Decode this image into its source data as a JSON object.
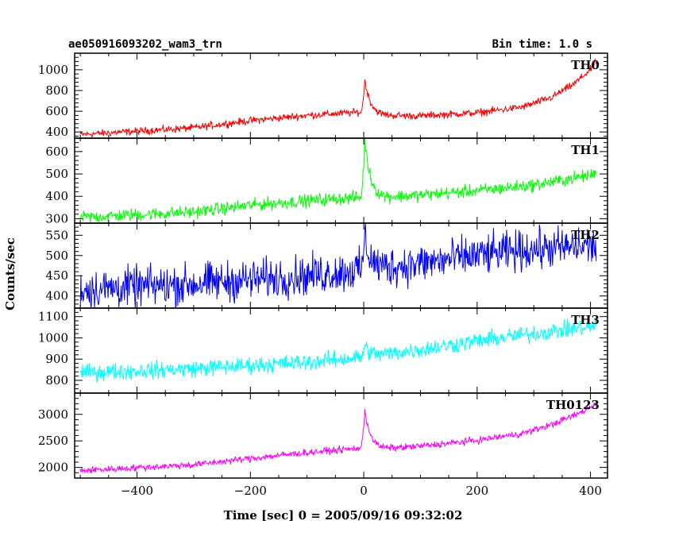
{
  "chart_data": {
    "type": "line",
    "title_left": "ae050916093202_wam3_trn",
    "title_right": "Bin time: 1.0 s",
    "xlabel": "Time [sec] 0 = 2005/09/16 09:32:02",
    "ylabel": "Counts/sec",
    "xlim": [
      -510,
      430
    ],
    "x_ticks": [
      -400,
      -200,
      0,
      200,
      400
    ],
    "x_tick_labels": [
      "−400",
      "−200",
      "0",
      "200",
      "400"
    ],
    "x_range": [
      -500,
      410
    ],
    "panels": [
      {
        "name": "TH0",
        "color": "#ff0000",
        "ylim": [
          340,
          1160
        ],
        "y_ticks": [
          400,
          600,
          800,
          1000
        ],
        "trend": [
          [
            -500,
            375
          ],
          [
            -300,
            440
          ],
          [
            -200,
            510
          ],
          [
            -100,
            560
          ],
          [
            -10,
            590
          ],
          [
            30,
            560
          ],
          [
            100,
            555
          ],
          [
            200,
            585
          ],
          [
            280,
            640
          ],
          [
            330,
            730
          ],
          [
            370,
            860
          ],
          [
            400,
            1000
          ],
          [
            410,
            1080
          ]
        ],
        "noise": 25,
        "burst": {
          "peak": 900,
          "time": 2
        }
      },
      {
        "name": "TH1",
        "color": "#00ff00",
        "ylim": [
          280,
          660
        ],
        "y_ticks": [
          300,
          400,
          500,
          600
        ],
        "trend": [
          [
            -500,
            305
          ],
          [
            -300,
            330
          ],
          [
            -200,
            360
          ],
          [
            -100,
            380
          ],
          [
            -10,
            395
          ],
          [
            30,
            395
          ],
          [
            100,
            405
          ],
          [
            200,
            425
          ],
          [
            300,
            450
          ],
          [
            400,
            495
          ],
          [
            410,
            505
          ]
        ],
        "noise": 20,
        "burst": {
          "peak": 650,
          "time": 2
        }
      },
      {
        "name": "TH2",
        "color": "#0000ff",
        "ylim": [
          370,
          580
        ],
        "y_ticks": [
          400,
          450,
          500,
          550
        ],
        "trend": [
          [
            -500,
            415
          ],
          [
            -300,
            430
          ],
          [
            -100,
            450
          ],
          [
            0,
            465
          ],
          [
            100,
            480
          ],
          [
            200,
            500
          ],
          [
            300,
            515
          ],
          [
            410,
            525
          ]
        ],
        "noise": 35,
        "burst": {
          "peak": 545,
          "time": 2
        }
      },
      {
        "name": "TH3",
        "color": "#00ffff",
        "ylim": [
          740,
          1140
        ],
        "y_ticks": [
          800,
          900,
          1000,
          1100
        ],
        "trend": [
          [
            -500,
            835
          ],
          [
            -300,
            855
          ],
          [
            -100,
            885
          ],
          [
            0,
            910
          ],
          [
            100,
            945
          ],
          [
            200,
            985
          ],
          [
            300,
            1020
          ],
          [
            410,
            1055
          ]
        ],
        "noise": 28,
        "burst": {
          "peak": 960,
          "time": 2
        }
      },
      {
        "name": "TH0123",
        "color": "#ff00ff",
        "ylim": [
          1800,
          3400
        ],
        "y_ticks": [
          2000,
          2500,
          3000
        ],
        "trend": [
          [
            -500,
            1940
          ],
          [
            -300,
            2050
          ],
          [
            -200,
            2170
          ],
          [
            -100,
            2280
          ],
          [
            -10,
            2360
          ],
          [
            30,
            2350
          ],
          [
            100,
            2400
          ],
          [
            200,
            2510
          ],
          [
            280,
            2640
          ],
          [
            330,
            2800
          ],
          [
            380,
            3020
          ],
          [
            410,
            3200
          ]
        ],
        "noise": 45,
        "burst": {
          "peak": 3080,
          "time": 2
        }
      }
    ]
  }
}
